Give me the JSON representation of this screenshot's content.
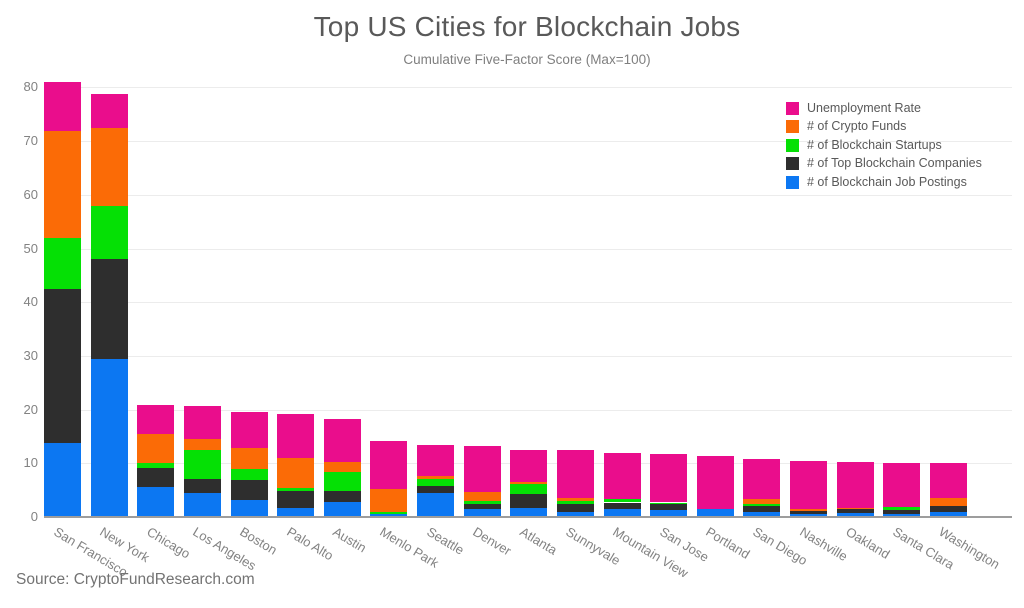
{
  "chart": {
    "title": "Top US Cities for Blockchain Jobs",
    "subtitle": "Cumulative Five-Factor Score (Max=100)",
    "source": "Source: CryptoFundResearch.com"
  },
  "chart_data": {
    "type": "bar",
    "stacked": true,
    "title": "Top US Cities for Blockchain Jobs",
    "subtitle": "Cumulative Five-Factor Score (Max=100)",
    "xlabel": "",
    "ylabel": "",
    "ylim": [
      0,
      80
    ],
    "yticks": [
      0,
      10,
      20,
      30,
      40,
      50,
      60,
      70,
      80
    ],
    "grid": true,
    "legend_position": "top-right",
    "legend_order_top_to_bottom": [
      "Unemployment Rate",
      "# of Crypto Funds",
      "# of Blockchain Startups",
      "# of Top Blockchain Companies",
      "# of Blockchain Job Postings"
    ],
    "categories": [
      "San Francisco",
      "New York",
      "Chicago",
      "Los Angeles",
      "Boston",
      "Palo Alto",
      "Austin",
      "Menlo Park",
      "Seattle",
      "Denver",
      "Atlanta",
      "Sunnyvale",
      "Mountain View",
      "San Jose",
      "Portland",
      "San Diego",
      "Nashville",
      "Oakland",
      "Santa Clara",
      "Washington"
    ],
    "series": [
      {
        "name": "# of Blockchain Job Postings",
        "color": "#0c77f2",
        "values": [
          13.8,
          29.5,
          5.5,
          4.5,
          3.1,
          1.6,
          2.8,
          0.6,
          4.4,
          1.5,
          1.6,
          1.0,
          1.5,
          1.3,
          1.5,
          1.0,
          0.5,
          0.8,
          0.5,
          0.9
        ]
      },
      {
        "name": "# of Top Blockchain Companies",
        "color": "#2e2e2e",
        "values": [
          28.6,
          18.5,
          3.7,
          2.5,
          3.7,
          3.3,
          2.1,
          0.0,
          1.4,
          1.0,
          2.6,
          1.5,
          1.2,
          1.2,
          0.0,
          1.1,
          0.6,
          0.6,
          0.8,
          1.1
        ]
      },
      {
        "name": "# of Blockchain Startups",
        "color": "#05e005",
        "values": [
          9.6,
          9.9,
          0.8,
          5.4,
          2.2,
          0.5,
          3.4,
          0.4,
          1.3,
          0.5,
          1.9,
          0.5,
          0.7,
          0.2,
          0.0,
          0.4,
          0.0,
          0.0,
          0.6,
          0.0
        ]
      },
      {
        "name": "# of Crypto Funds",
        "color": "#fb6b06",
        "values": [
          19.9,
          14.5,
          5.5,
          2.2,
          3.8,
          5.6,
          2.0,
          4.3,
          0.5,
          1.7,
          0.4,
          0.5,
          0.0,
          0.0,
          0.0,
          0.9,
          0.4,
          0.3,
          0.0,
          1.6
        ]
      },
      {
        "name": "Unemployment Rate",
        "color": "#ea0d8c",
        "values": [
          9.1,
          6.4,
          5.4,
          6.1,
          6.7,
          8.2,
          7.9,
          8.8,
          5.9,
          8.6,
          5.9,
          9.0,
          8.5,
          9.1,
          9.8,
          7.4,
          8.9,
          8.6,
          8.2,
          6.5
        ]
      }
    ]
  }
}
